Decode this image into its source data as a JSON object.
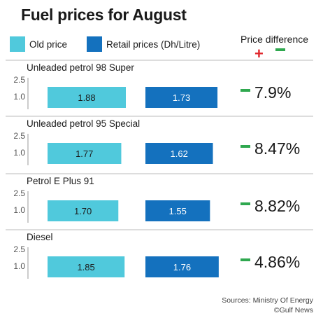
{
  "title": "Fuel prices for August",
  "legend": {
    "old_label": "Old price",
    "new_label": "Retail prices (Dh/Litre)"
  },
  "difference_header": "Price difference",
  "colors": {
    "old_price": "#50c9dc",
    "retail_price": "#1471be",
    "decrease": "#2fa84f",
    "increase": "#e0262b",
    "separator": "#bbbbbb"
  },
  "chart_data": [
    {
      "type": "bar",
      "title": "Unleaded petrol 98 Super",
      "categories": [
        "Old price",
        "Retail prices (Dh/Litre)"
      ],
      "series": [
        {
          "values": [
            1.88,
            1.73
          ]
        }
      ],
      "value_labels": [
        "1.88",
        "1.73"
      ],
      "yticks": [
        "2.5",
        "1.0"
      ],
      "ylim": [
        0,
        2.5
      ],
      "difference": "7.9%",
      "difference_direction": "decrease"
    },
    {
      "type": "bar",
      "title": "Unleaded petrol 95 Special",
      "categories": [
        "Old price",
        "Retail prices (Dh/Litre)"
      ],
      "series": [
        {
          "values": [
            1.77,
            1.62
          ]
        }
      ],
      "value_labels": [
        "1.77",
        "1.62"
      ],
      "yticks": [
        "2.5",
        "1.0"
      ],
      "ylim": [
        0,
        2.5
      ],
      "difference": "8.47%",
      "difference_direction": "decrease"
    },
    {
      "type": "bar",
      "title": "Petrol E Plus 91",
      "categories": [
        "Old price",
        "Retail prices (Dh/Litre)"
      ],
      "series": [
        {
          "values": [
            1.7,
            1.55
          ]
        }
      ],
      "value_labels": [
        "1.70",
        "1.55"
      ],
      "yticks": [
        "2.5",
        "1.0"
      ],
      "ylim": [
        0,
        2.5
      ],
      "difference": "8.82%",
      "difference_direction": "decrease"
    },
    {
      "type": "bar",
      "title": "Diesel",
      "categories": [
        "Old price",
        "Retail prices (Dh/Litre)"
      ],
      "series": [
        {
          "values": [
            1.85,
            1.76
          ]
        }
      ],
      "value_labels": [
        "1.85",
        "1.76"
      ],
      "yticks": [
        "2.5",
        "1.0"
      ],
      "ylim": [
        0,
        2.5
      ],
      "difference": "4.86%",
      "difference_direction": "decrease"
    }
  ],
  "source": {
    "line1": "Sources: Ministry Of Energy",
    "line2": "©Gulf News"
  }
}
